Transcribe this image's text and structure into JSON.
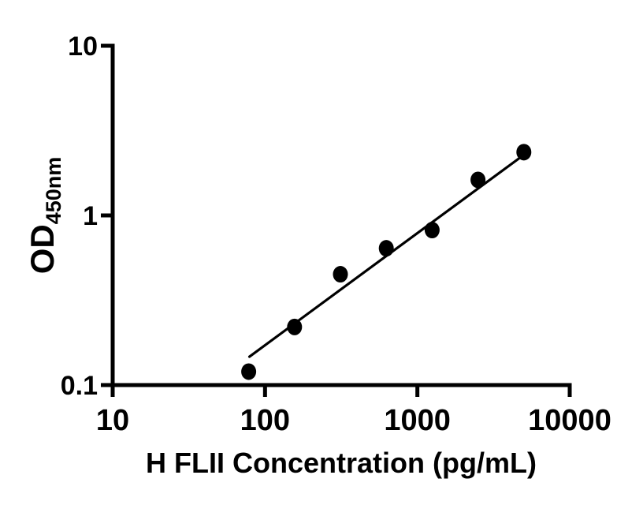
{
  "figure": {
    "background_color": "#ffffff",
    "ink_color": "#000000"
  },
  "chart_data": {
    "type": "scatter",
    "title": "",
    "xlabel": "H FLII Concentration (pg/mL)",
    "ylabel_main": "OD",
    "ylabel_sub": "450nm",
    "x_scale": "log",
    "y_scale": "log",
    "xlim": [
      10,
      10000
    ],
    "ylim": [
      0.1,
      10
    ],
    "x_ticks": [
      10,
      100,
      1000,
      10000
    ],
    "x_tick_labels": [
      "10",
      "100",
      "1000",
      "10000"
    ],
    "y_ticks": [
      0.1,
      1,
      10
    ],
    "y_tick_labels": [
      "0.1",
      "1",
      "10"
    ],
    "grid": false,
    "legend": null,
    "marker": {
      "shape": "circle",
      "color": "#000000"
    },
    "points": [
      {
        "x": 78.125,
        "y": 0.12
      },
      {
        "x": 156.25,
        "y": 0.22
      },
      {
        "x": 312.5,
        "y": 0.45
      },
      {
        "x": 625,
        "y": 0.64
      },
      {
        "x": 1250,
        "y": 0.82
      },
      {
        "x": 2500,
        "y": 1.62
      },
      {
        "x": 5000,
        "y": 2.36
      }
    ],
    "fit_line": {
      "x1": 79,
      "y1": 0.147,
      "x2": 4850,
      "y2": 2.23
    }
  }
}
